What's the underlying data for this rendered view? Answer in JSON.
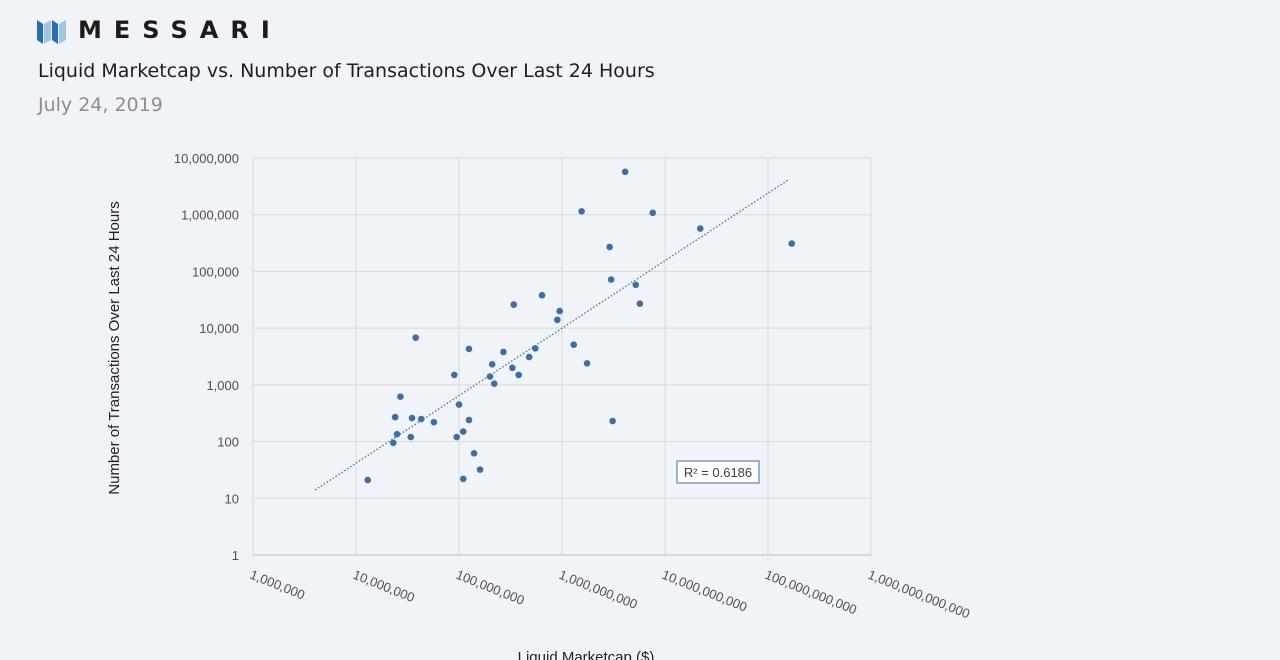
{
  "brand": {
    "name": "MESSARI",
    "logo_icon": "messari-logo-icon",
    "logo_colors": [
      "#2b6cb0",
      "#9fc5ea",
      "#2b6cb0",
      "#9fc5ea"
    ]
  },
  "header": {
    "title": "Liquid Marketcap vs. Number of Transactions Over Last 24 Hours",
    "subtitle": "July 24, 2019"
  },
  "chart_data": {
    "type": "scatter",
    "xlabel": "Liquid Marketcap ($)",
    "ylabel": "Number of Transactions Over Last 24 Hours",
    "xscale": "log",
    "yscale": "log",
    "xlim": [
      1000000,
      1000000000000
    ],
    "ylim": [
      1,
      10000000
    ],
    "x_tick_labels": [
      "1,000,000",
      "10,000,000",
      "100,000,000",
      "1,000,000,000",
      "10,000,000,000",
      "100,000,000,000",
      "1,000,000,000,000"
    ],
    "y_tick_labels": [
      "1",
      "10",
      "100",
      "1,000",
      "10,000",
      "100,000",
      "1,000,000",
      "10,000,000"
    ],
    "grid": true,
    "point_color": "#3f6ea6",
    "trendline": {
      "style": "dotted",
      "color": "#3f6ea6",
      "x": [
        4000000,
        160000000000
      ],
      "y": [
        14,
        4200000
      ]
    },
    "annotation": "R² = 0.6186",
    "series": [
      {
        "points": [
          [
            13000000,
            21
          ],
          [
            23000000,
            95
          ],
          [
            24000000,
            270
          ],
          [
            25000000,
            135
          ],
          [
            27000000,
            620
          ],
          [
            34000000,
            120
          ],
          [
            35000000,
            260
          ],
          [
            38000000,
            6800
          ],
          [
            43000000,
            250
          ],
          [
            57000000,
            220
          ],
          [
            90000000,
            1500
          ],
          [
            95000000,
            120
          ],
          [
            100000000,
            450
          ],
          [
            110000000,
            150
          ],
          [
            110000000,
            22
          ],
          [
            125000000,
            4300
          ],
          [
            125000000,
            240
          ],
          [
            140000000,
            62
          ],
          [
            160000000,
            32
          ],
          [
            200000000,
            1400
          ],
          [
            210000000,
            2300
          ],
          [
            220000000,
            1050
          ],
          [
            270000000,
            3800
          ],
          [
            330000000,
            2000
          ],
          [
            340000000,
            26000
          ],
          [
            380000000,
            1500
          ],
          [
            480000000,
            3100
          ],
          [
            550000000,
            4400
          ],
          [
            640000000,
            38000
          ],
          [
            900000000,
            14000
          ],
          [
            950000000,
            20000
          ],
          [
            1300000000,
            5100
          ],
          [
            1550000000,
            1150000
          ],
          [
            1750000000,
            2400
          ],
          [
            2900000000,
            270000
          ],
          [
            3000000000,
            72000
          ],
          [
            3100000000,
            230
          ],
          [
            4100000000,
            5700000
          ],
          [
            5200000000,
            58000
          ],
          [
            5700000000,
            27000
          ],
          [
            7600000000,
            1080000
          ],
          [
            22000000000,
            570000
          ],
          [
            170000000000,
            310000
          ]
        ]
      }
    ]
  }
}
